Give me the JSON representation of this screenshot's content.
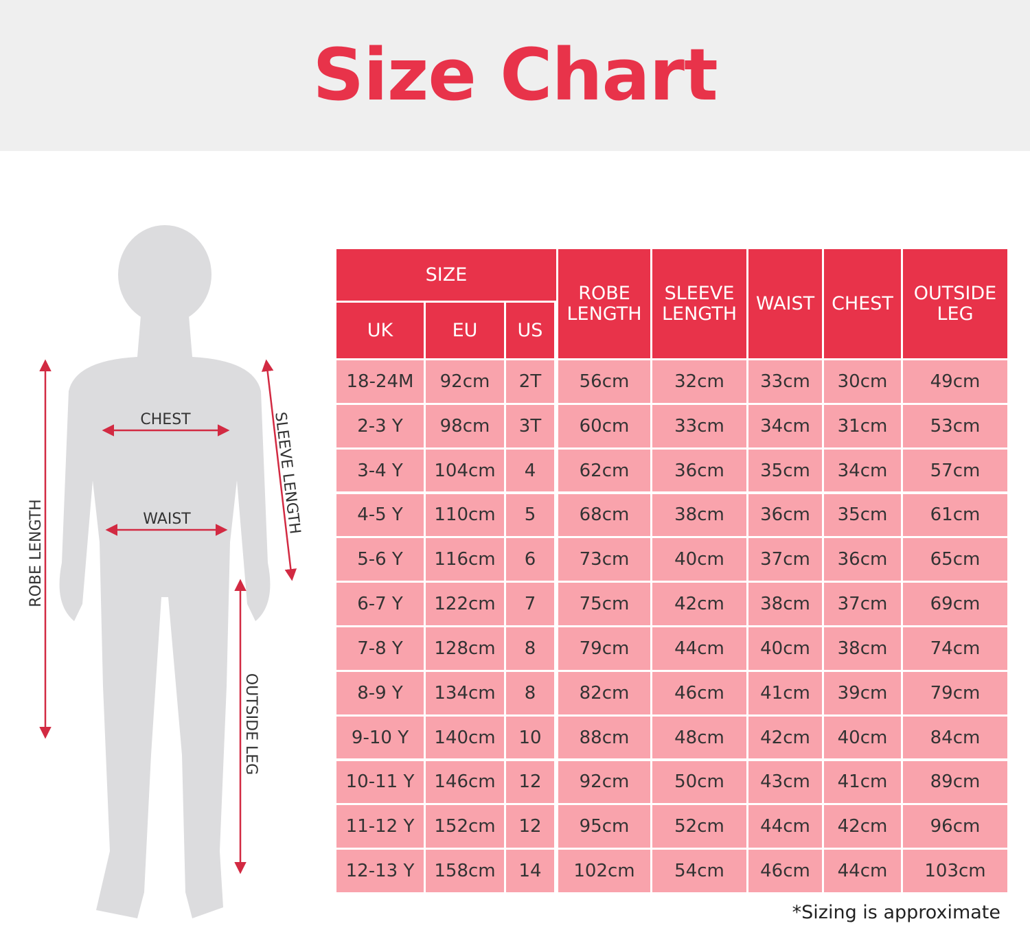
{
  "header": {
    "title": "Size Chart"
  },
  "figure": {
    "chest": "CHEST",
    "waist": "WAIST",
    "robe_length": "ROBE LENGTH",
    "sleeve_length": "SLEEVE LENGTH",
    "outside_leg": "OUTSIDE LEG"
  },
  "table": {
    "group_header": "SIZE",
    "size_headers": [
      "UK",
      "EU",
      "US"
    ],
    "measure_headers": [
      "ROBE LENGTH",
      "SLEEVE LENGTH",
      "WAIST",
      "CHEST",
      "OUTSIDE LEG"
    ],
    "rows": [
      [
        "18-24M",
        "92cm",
        "2T",
        "56cm",
        "32cm",
        "33cm",
        "30cm",
        "49cm"
      ],
      [
        "2-3 Y",
        "98cm",
        "3T",
        "60cm",
        "33cm",
        "34cm",
        "31cm",
        "53cm"
      ],
      [
        "3-4 Y",
        "104cm",
        "4",
        "62cm",
        "36cm",
        "35cm",
        "34cm",
        "57cm"
      ],
      [
        "4-5 Y",
        "110cm",
        "5",
        "68cm",
        "38cm",
        "36cm",
        "35cm",
        "61cm"
      ],
      [
        "5-6 Y",
        "116cm",
        "6",
        "73cm",
        "40cm",
        "37cm",
        "36cm",
        "65cm"
      ],
      [
        "6-7 Y",
        "122cm",
        "7",
        "75cm",
        "42cm",
        "38cm",
        "37cm",
        "69cm"
      ],
      [
        "7-8 Y",
        "128cm",
        "8",
        "79cm",
        "44cm",
        "40cm",
        "38cm",
        "74cm"
      ],
      [
        "8-9 Y",
        "134cm",
        "8",
        "82cm",
        "46cm",
        "41cm",
        "39cm",
        "79cm"
      ],
      [
        "9-10 Y",
        "140cm",
        "10",
        "88cm",
        "48cm",
        "42cm",
        "40cm",
        "84cm"
      ],
      [
        "10-11 Y",
        "146cm",
        "12",
        "92cm",
        "50cm",
        "43cm",
        "41cm",
        "89cm"
      ],
      [
        "11-12 Y",
        "152cm",
        "12",
        "95cm",
        "52cm",
        "44cm",
        "42cm",
        "96cm"
      ],
      [
        "12-13 Y",
        "158cm",
        "14",
        "102cm",
        "54cm",
        "46cm",
        "44cm",
        "103cm"
      ]
    ]
  },
  "footnote": "*Sizing is approximate"
}
